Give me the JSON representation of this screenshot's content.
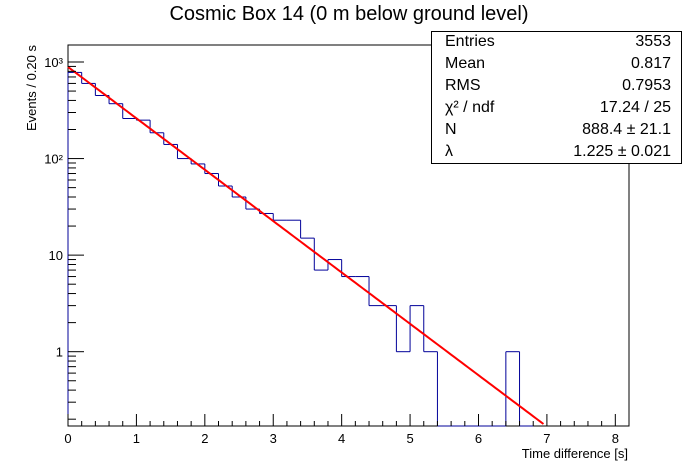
{
  "chart_data": {
    "type": "bar",
    "title": "Cosmic Box 14 (0 m below ground level)",
    "xlabel": "Time difference [s]",
    "ylabel": "Events / 0.20 s",
    "yscale": "log",
    "xlim": [
      0,
      8.2
    ],
    "ylim": [
      0.17,
      1500
    ],
    "x_ticks": [
      "0",
      "1",
      "2",
      "3",
      "4",
      "5",
      "6",
      "7",
      "8"
    ],
    "y_ticks": [
      {
        "value": 1,
        "label": "1"
      },
      {
        "value": 10,
        "label": "10"
      },
      {
        "value": 100,
        "label": "10²"
      },
      {
        "value": 1000,
        "label": "10³"
      }
    ],
    "bin_width": 0.2,
    "bins": [
      {
        "x": 0.0,
        "value": 780
      },
      {
        "x": 0.2,
        "value": 600
      },
      {
        "x": 0.4,
        "value": 450
      },
      {
        "x": 0.6,
        "value": 370
      },
      {
        "x": 0.8,
        "value": 260
      },
      {
        "x": 1.0,
        "value": 250
      },
      {
        "x": 1.2,
        "value": 185
      },
      {
        "x": 1.4,
        "value": 140
      },
      {
        "x": 1.6,
        "value": 100
      },
      {
        "x": 1.8,
        "value": 88
      },
      {
        "x": 2.0,
        "value": 70
      },
      {
        "x": 2.2,
        "value": 52
      },
      {
        "x": 2.4,
        "value": 40
      },
      {
        "x": 2.6,
        "value": 30
      },
      {
        "x": 2.8,
        "value": 27
      },
      {
        "x": 3.0,
        "value": 23
      },
      {
        "x": 3.2,
        "value": 23
      },
      {
        "x": 3.4,
        "value": 15
      },
      {
        "x": 3.6,
        "value": 7
      },
      {
        "x": 3.8,
        "value": 9
      },
      {
        "x": 4.0,
        "value": 6
      },
      {
        "x": 4.2,
        "value": 6
      },
      {
        "x": 4.4,
        "value": 3
      },
      {
        "x": 4.6,
        "value": 3
      },
      {
        "x": 4.8,
        "value": 1
      },
      {
        "x": 5.0,
        "value": 3
      },
      {
        "x": 5.2,
        "value": 1
      },
      {
        "x": 5.4,
        "value": 0
      },
      {
        "x": 5.6,
        "value": 0
      },
      {
        "x": 5.8,
        "value": 0
      },
      {
        "x": 6.0,
        "value": 0
      },
      {
        "x": 6.2,
        "value": 0
      },
      {
        "x": 6.4,
        "value": 1
      },
      {
        "x": 6.6,
        "value": 0
      }
    ],
    "fit": {
      "function": "N * exp(-lambda * t)",
      "N": 888.4,
      "lambda": 1.225,
      "x_range": [
        0,
        7.0
      ],
      "color": "#ff0000"
    },
    "histogram_color": "#000099",
    "legend_position": "top-right"
  },
  "stats": [
    {
      "key": "Entries",
      "value": "3553"
    },
    {
      "key": "Mean",
      "value": "0.817"
    },
    {
      "key": "RMS",
      "value": "0.7953"
    },
    {
      "key": "χ² / ndf",
      "value": "17.24 / 25"
    },
    {
      "key": "N",
      "value": "888.4 ± 21.1"
    },
    {
      "key": "λ",
      "value": "1.225 ± 0.021"
    }
  ]
}
